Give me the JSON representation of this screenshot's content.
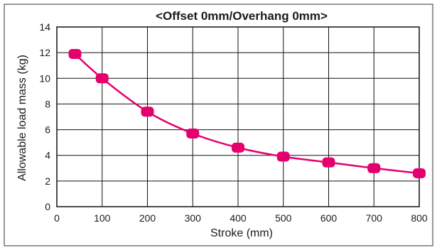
{
  "chart_data": {
    "type": "line",
    "title": "<Offset 0mm/Overhang  0mm>",
    "xlabel": "Stroke (mm)",
    "ylabel": "Allowable load mass (kg)",
    "xlim": [
      0,
      800
    ],
    "ylim": [
      0,
      14
    ],
    "xticks": [
      0,
      100,
      200,
      300,
      400,
      500,
      600,
      700,
      800
    ],
    "yticks": [
      0,
      2,
      4,
      6,
      8,
      10,
      12,
      14
    ],
    "grid": true,
    "legend": "none",
    "series": [
      {
        "color": "#e5006d",
        "points": [
          {
            "x": 40,
            "y": 11.9
          },
          {
            "x": 100,
            "y": 10.0
          },
          {
            "x": 200,
            "y": 7.4
          },
          {
            "x": 300,
            "y": 5.7
          },
          {
            "x": 400,
            "y": 4.6
          },
          {
            "x": 500,
            "y": 3.9
          },
          {
            "x": 600,
            "y": 3.45
          },
          {
            "x": 700,
            "y": 3.0
          },
          {
            "x": 800,
            "y": 2.6
          }
        ]
      }
    ]
  }
}
